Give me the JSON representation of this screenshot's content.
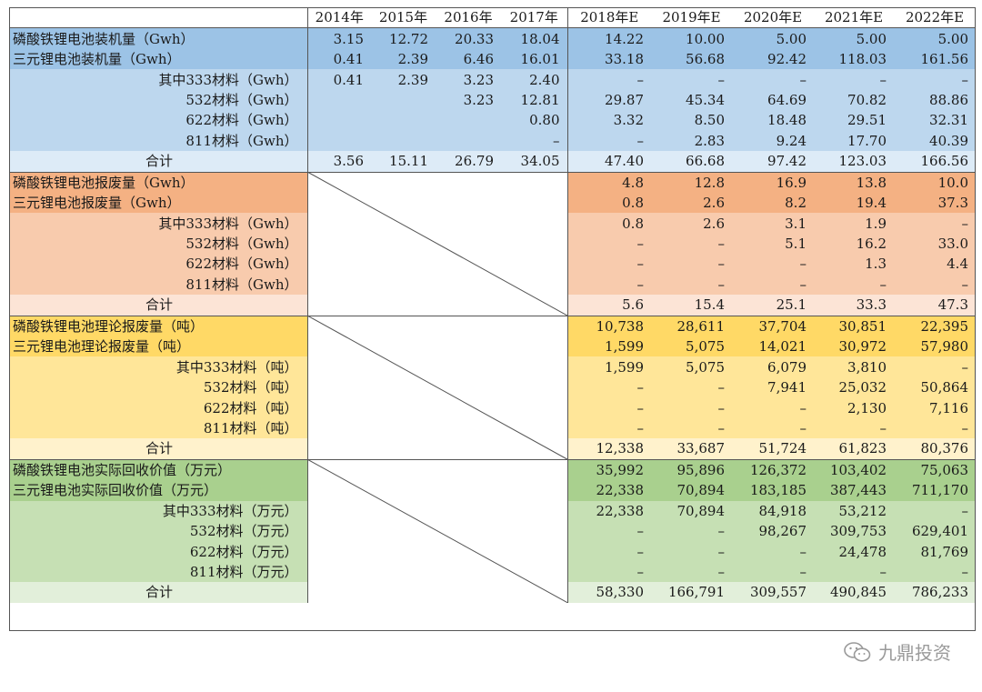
{
  "headers": [
    "",
    "2014年",
    "2015年",
    "2016年",
    "2017年",
    "2018年E",
    "2019年E",
    "2020年E",
    "2021年E",
    "2022年E"
  ],
  "sections": [
    {
      "id": "installed",
      "colors": {
        "main": "#9cc3e6",
        "sub": "#bdd7ee",
        "total": "#ddebf7"
      },
      "has_history": true,
      "rows": [
        {
          "label": "磷酸铁锂电池装机量（Gwh）",
          "indent": false,
          "values": [
            "3.15",
            "12.72",
            "20.33",
            "18.04",
            "14.22",
            "10.00",
            "5.00",
            "5.00",
            "5.00"
          ]
        },
        {
          "label": "三元锂电池装机量（Gwh）",
          "indent": false,
          "values": [
            "0.41",
            "2.39",
            "6.46",
            "16.01",
            "33.18",
            "56.68",
            "92.42",
            "118.03",
            "161.56"
          ]
        },
        {
          "label": "其中333材料（Gwh）",
          "indent": true,
          "values": [
            "0.41",
            "2.39",
            "3.23",
            "2.40",
            "–",
            "–",
            "–",
            "–",
            "–"
          ]
        },
        {
          "label": "532材料（Gwh）",
          "indent": true,
          "values": [
            "",
            "",
            "3.23",
            "12.81",
            "29.87",
            "45.34",
            "64.69",
            "70.82",
            "88.86"
          ]
        },
        {
          "label": "622材料（Gwh）",
          "indent": true,
          "values": [
            "",
            "",
            "",
            "0.80",
            "3.32",
            "8.50",
            "18.48",
            "29.51",
            "32.31"
          ]
        },
        {
          "label": "811材料（Gwh）",
          "indent": true,
          "values": [
            "",
            "",
            "",
            "–",
            "–",
            "2.83",
            "9.24",
            "17.70",
            "40.39"
          ]
        },
        {
          "label": "合计",
          "indent": true,
          "total": true,
          "values": [
            "3.56",
            "15.11",
            "26.79",
            "34.05",
            "47.40",
            "66.68",
            "97.42",
            "123.03",
            "166.56"
          ]
        }
      ]
    },
    {
      "id": "scrap",
      "colors": {
        "main": "#f4b183",
        "sub": "#f8cbad",
        "total": "#fce4d6"
      },
      "has_history": false,
      "rows": [
        {
          "label": "磷酸铁锂电池报废量（Gwh）",
          "indent": false,
          "values": [
            "",
            "",
            "",
            "",
            "4.8",
            "12.8",
            "16.9",
            "13.8",
            "10.0"
          ]
        },
        {
          "label": "三元锂电池报废量（Gwh）",
          "indent": false,
          "values": [
            "",
            "",
            "",
            "",
            "0.8",
            "2.6",
            "8.2",
            "19.4",
            "37.3"
          ]
        },
        {
          "label": "其中333材料（Gwh）",
          "indent": true,
          "values": [
            "",
            "",
            "",
            "",
            "0.8",
            "2.6",
            "3.1",
            "1.9",
            "–"
          ]
        },
        {
          "label": "532材料（Gwh）",
          "indent": true,
          "values": [
            "",
            "",
            "",
            "",
            "–",
            "–",
            "5.1",
            "16.2",
            "33.0"
          ]
        },
        {
          "label": "622材料（Gwh）",
          "indent": true,
          "values": [
            "",
            "",
            "",
            "",
            "–",
            "–",
            "–",
            "1.3",
            "4.4"
          ]
        },
        {
          "label": "811材料（Gwh）",
          "indent": true,
          "values": [
            "",
            "",
            "",
            "",
            "–",
            "–",
            "–",
            "–",
            "–"
          ]
        },
        {
          "label": "合计",
          "indent": true,
          "total": true,
          "values": [
            "",
            "",
            "",
            "",
            "5.6",
            "15.4",
            "25.1",
            "33.3",
            "47.3"
          ]
        }
      ]
    },
    {
      "id": "theoretical",
      "colors": {
        "main": "#ffd966",
        "sub": "#ffe699",
        "total": "#fff2cc"
      },
      "has_history": false,
      "rows": [
        {
          "label": "磷酸铁锂电池理论报废量（吨）",
          "indent": false,
          "values": [
            "",
            "",
            "",
            "",
            "10,738",
            "28,611",
            "37,704",
            "30,851",
            "22,395"
          ]
        },
        {
          "label": "三元锂电池理论报废量（吨）",
          "indent": false,
          "values": [
            "",
            "",
            "",
            "",
            "1,599",
            "5,075",
            "14,021",
            "30,972",
            "57,980"
          ]
        },
        {
          "label": "其中333材料（吨）",
          "indent": true,
          "values": [
            "",
            "",
            "",
            "",
            "1,599",
            "5,075",
            "6,079",
            "3,810",
            "–"
          ]
        },
        {
          "label": "532材料（吨）",
          "indent": true,
          "values": [
            "",
            "",
            "",
            "",
            "–",
            "–",
            "7,941",
            "25,032",
            "50,864"
          ]
        },
        {
          "label": "622材料（吨）",
          "indent": true,
          "values": [
            "",
            "",
            "",
            "",
            "–",
            "–",
            "–",
            "2,130",
            "7,116"
          ]
        },
        {
          "label": "811材料（吨）",
          "indent": true,
          "values": [
            "",
            "",
            "",
            "",
            "–",
            "–",
            "–",
            "–",
            "–"
          ]
        },
        {
          "label": "合计",
          "indent": true,
          "total": true,
          "values": [
            "",
            "",
            "",
            "",
            "12,338",
            "33,687",
            "51,724",
            "61,823",
            "80,376"
          ]
        }
      ]
    },
    {
      "id": "recycle_value",
      "colors": {
        "main": "#a9d08e",
        "sub": "#c6e0b4",
        "total": "#e2efda"
      },
      "has_history": false,
      "rows": [
        {
          "label": "磷酸铁锂电池实际回收价值（万元）",
          "indent": false,
          "values": [
            "",
            "",
            "",
            "",
            "35,992",
            "95,896",
            "126,372",
            "103,402",
            "75,063"
          ]
        },
        {
          "label": "三元锂电池实际回收价值（万元）",
          "indent": false,
          "values": [
            "",
            "",
            "",
            "",
            "22,338",
            "70,894",
            "183,185",
            "387,443",
            "711,170"
          ]
        },
        {
          "label": "其中333材料（万元）",
          "indent": true,
          "values": [
            "",
            "",
            "",
            "",
            "22,338",
            "70,894",
            "84,918",
            "53,212",
            "–"
          ]
        },
        {
          "label": "532材料（万元）",
          "indent": true,
          "values": [
            "",
            "",
            "",
            "",
            "–",
            "–",
            "98,267",
            "309,753",
            "629,401"
          ]
        },
        {
          "label": "622材料（万元）",
          "indent": true,
          "values": [
            "",
            "",
            "",
            "",
            "–",
            "–",
            "–",
            "24,478",
            "81,769"
          ]
        },
        {
          "label": "811材料（万元）",
          "indent": true,
          "values": [
            "",
            "",
            "",
            "",
            "–",
            "–",
            "–",
            "–",
            "–"
          ]
        },
        {
          "label": "合计",
          "indent": true,
          "total": true,
          "values": [
            "",
            "",
            "",
            "",
            "58,330",
            "166,791",
            "309,557",
            "490,845",
            "786,233"
          ]
        }
      ]
    }
  ],
  "watermark": {
    "text": "九鼎投资",
    "icon": "wechat-icon"
  }
}
